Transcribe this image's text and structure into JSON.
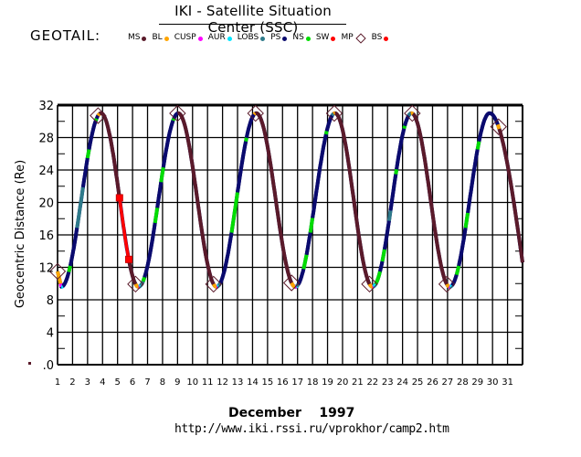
{
  "header": {
    "title": "IKI - Satellite Situation Center (SSC)",
    "satellite": "GEOTAIL:"
  },
  "legend": [
    {
      "label": "MS",
      "color": "#5a1a2a",
      "marker": "dot"
    },
    {
      "label": "BL",
      "color": "#ffa500",
      "marker": "dot"
    },
    {
      "label": "CUSP",
      "color": "#ff00ff",
      "marker": "dot"
    },
    {
      "label": "AUR",
      "color": "#00e5ff",
      "marker": "dot"
    },
    {
      "label": "LOBS",
      "color": "#2e7a8a",
      "marker": "dot"
    },
    {
      "label": "PS",
      "color": "#0a0a6e",
      "marker": "dot"
    },
    {
      "label": "NS",
      "color": "#00dd00",
      "marker": "dot"
    },
    {
      "label": "SW",
      "color": "#ff0000",
      "marker": "dot"
    },
    {
      "label": "MP",
      "color": "#5a1a2a",
      "marker": "diamond"
    },
    {
      "label": "BS",
      "color": "#ff0000",
      "marker": "dot"
    }
  ],
  "footer": {
    "month": "December    1997",
    "url": "http://www.iki.rssi.ru/vprokhor/camp2.htm"
  },
  "chart_data": {
    "type": "line",
    "title": "IKI - Satellite Situation Center (SSC)",
    "xlabel": "December 1997",
    "ylabel": "Geocentric Distance (Re)",
    "xlim": [
      1,
      32
    ],
    "ylim": [
      0,
      32
    ],
    "xticks": [
      "1",
      "2",
      "3",
      "4",
      "5",
      "6",
      "7",
      "8",
      "9",
      "10",
      "11",
      "12",
      "13",
      "14",
      "15",
      "16",
      "17",
      "18",
      "19",
      "20",
      "21",
      "22",
      "23",
      "24",
      "25",
      "26",
      "27",
      "28",
      "29",
      "30",
      "31"
    ],
    "yticks": [
      ".0",
      "4",
      "8",
      "12",
      "16",
      "20",
      "24",
      "28",
      "32"
    ],
    "ytick_values": [
      0,
      4,
      8,
      12,
      16,
      20,
      24,
      28,
      32
    ],
    "grid": true,
    "orbit": {
      "troughs": [
        [
          1.25,
          9.6
        ],
        [
          6.4,
          9.6
        ],
        [
          11.6,
          9.6
        ],
        [
          16.85,
          9.6
        ],
        [
          22.0,
          9.6
        ],
        [
          27.15,
          9.6
        ]
      ],
      "peaks": [
        [
          3.9,
          31.0
        ],
        [
          9.05,
          31.0
        ],
        [
          14.25,
          31.0
        ],
        [
          19.5,
          31.0
        ],
        [
          24.6,
          31.0
        ],
        [
          29.8,
          31.0
        ]
      ],
      "start": [
        1.0,
        11.5
      ],
      "end": [
        32.0,
        12.6
      ]
    },
    "segments": [
      {
        "region": "BL",
        "from": 1.0,
        "to": 1.2
      },
      {
        "region": "CUSP",
        "from": 1.2,
        "to": 1.25
      },
      {
        "region": "AUR",
        "from": 1.25,
        "to": 1.35
      },
      {
        "region": "PS",
        "from": 1.35,
        "to": 1.75
      },
      {
        "region": "NS",
        "from": 1.75,
        "to": 1.85
      },
      {
        "region": "PS",
        "from": 1.85,
        "to": 2.3
      },
      {
        "region": "LOBS",
        "from": 2.3,
        "to": 2.7
      },
      {
        "region": "PS",
        "from": 2.7,
        "to": 3.0
      },
      {
        "region": "NS",
        "from": 3.0,
        "to": 3.1
      },
      {
        "region": "PS",
        "from": 3.1,
        "to": 3.55
      },
      {
        "region": "NS",
        "from": 3.55,
        "to": 3.6
      },
      {
        "region": "BL",
        "from": 3.7,
        "to": 3.8
      },
      {
        "region": "MS",
        "from": 3.8,
        "to": 5.1
      },
      {
        "region": "SW",
        "from": 5.1,
        "to": 5.75
      },
      {
        "region": "MS",
        "from": 5.75,
        "to": 6.2
      },
      {
        "region": "BL",
        "from": 6.2,
        "to": 6.4
      },
      {
        "region": "CUSP",
        "from": 6.4,
        "to": 6.45
      },
      {
        "region": "AUR",
        "from": 6.45,
        "to": 6.55
      },
      {
        "region": "LOBS",
        "from": 6.55,
        "to": 6.7
      },
      {
        "region": "NS",
        "from": 6.7,
        "to": 6.8
      },
      {
        "region": "PS",
        "from": 6.8,
        "to": 7.5
      },
      {
        "region": "NS",
        "from": 7.5,
        "to": 7.65
      },
      {
        "region": "PS",
        "from": 7.65,
        "to": 7.9
      },
      {
        "region": "NS",
        "from": 7.9,
        "to": 8.05
      },
      {
        "region": "PS",
        "from": 8.05,
        "to": 8.7
      },
      {
        "region": "NS",
        "from": 8.7,
        "to": 8.75
      },
      {
        "region": "PS",
        "from": 8.75,
        "to": 9.0
      },
      {
        "region": "MS",
        "from": 9.0,
        "to": 11.4
      },
      {
        "region": "BL",
        "from": 11.4,
        "to": 11.6
      },
      {
        "region": "CUSP",
        "from": 11.6,
        "to": 11.65
      },
      {
        "region": "AUR",
        "from": 11.65,
        "to": 11.75
      },
      {
        "region": "LOBS",
        "from": 11.75,
        "to": 11.85
      },
      {
        "region": "PS",
        "from": 11.85,
        "to": 12.6
      },
      {
        "region": "NS",
        "from": 12.6,
        "to": 13.0
      },
      {
        "region": "PS",
        "from": 13.0,
        "to": 13.55
      },
      {
        "region": "NS",
        "from": 13.55,
        "to": 13.6
      },
      {
        "region": "PS",
        "from": 13.6,
        "to": 14.1
      },
      {
        "region": "BL",
        "from": 14.1,
        "to": 14.2
      },
      {
        "region": "MS",
        "from": 14.2,
        "to": 16.6
      },
      {
        "region": "BL",
        "from": 16.6,
        "to": 16.85
      },
      {
        "region": "CUSP",
        "from": 16.85,
        "to": 16.9
      },
      {
        "region": "AUR",
        "from": 16.9,
        "to": 16.95
      },
      {
        "region": "LOBS",
        "from": 16.95,
        "to": 17.05
      },
      {
        "region": "PS",
        "from": 17.05,
        "to": 17.4
      },
      {
        "region": "NS",
        "from": 17.4,
        "to": 17.6
      },
      {
        "region": "PS",
        "from": 17.6,
        "to": 17.85
      },
      {
        "region": "NS",
        "from": 17.85,
        "to": 18.0
      },
      {
        "region": "PS",
        "from": 18.0,
        "to": 18.9
      },
      {
        "region": "NS",
        "from": 18.9,
        "to": 18.95
      },
      {
        "region": "PS",
        "from": 18.95,
        "to": 19.3
      },
      {
        "region": "LOBS",
        "from": 19.3,
        "to": 19.4
      },
      {
        "region": "BL",
        "from": 19.4,
        "to": 19.5
      },
      {
        "region": "MS",
        "from": 19.5,
        "to": 21.8
      },
      {
        "region": "BL",
        "from": 21.8,
        "to": 22.0
      },
      {
        "region": "CUSP",
        "from": 22.0,
        "to": 22.05
      },
      {
        "region": "AUR",
        "from": 22.05,
        "to": 22.2
      },
      {
        "region": "NS",
        "from": 22.2,
        "to": 22.5
      },
      {
        "region": "PS",
        "from": 22.5,
        "to": 22.65
      },
      {
        "region": "NS",
        "from": 22.65,
        "to": 22.8
      },
      {
        "region": "PS",
        "from": 22.8,
        "to": 23.1
      },
      {
        "region": "LOBS",
        "from": 23.1,
        "to": 23.2
      },
      {
        "region": "PS",
        "from": 23.2,
        "to": 23.55
      },
      {
        "region": "NS",
        "from": 23.55,
        "to": 23.6
      },
      {
        "region": "PS",
        "from": 23.6,
        "to": 24.1
      },
      {
        "region": "NS",
        "from": 24.1,
        "to": 24.15
      },
      {
        "region": "PS",
        "from": 24.15,
        "to": 24.4
      },
      {
        "region": "LOBS",
        "from": 24.4,
        "to": 24.55
      },
      {
        "region": "BL",
        "from": 24.55,
        "to": 24.7
      },
      {
        "region": "MS",
        "from": 24.7,
        "to": 26.95
      },
      {
        "region": "BL",
        "from": 26.95,
        "to": 27.1
      },
      {
        "region": "CUSP",
        "from": 27.1,
        "to": 27.15
      },
      {
        "region": "AUR",
        "from": 27.15,
        "to": 27.3
      },
      {
        "region": "PS",
        "from": 27.3,
        "to": 27.6
      },
      {
        "region": "NS",
        "from": 27.6,
        "to": 27.75
      },
      {
        "region": "PS",
        "from": 27.75,
        "to": 28.2
      },
      {
        "region": "NS",
        "from": 28.2,
        "to": 28.35
      },
      {
        "region": "PS",
        "from": 28.35,
        "to": 29.0
      },
      {
        "region": "NS",
        "from": 29.0,
        "to": 29.1
      },
      {
        "region": "PS",
        "from": 29.1,
        "to": 30.35
      },
      {
        "region": "BL",
        "from": 30.35,
        "to": 30.45
      },
      {
        "region": "MS",
        "from": 30.45,
        "to": 32.0
      }
    ],
    "mp_crossings": [
      1.0,
      3.7,
      6.2,
      9.0,
      11.4,
      14.2,
      16.6,
      19.45,
      21.8,
      24.65,
      26.95,
      30.4
    ],
    "bs_crossings": [
      5.13,
      5.75
    ]
  }
}
